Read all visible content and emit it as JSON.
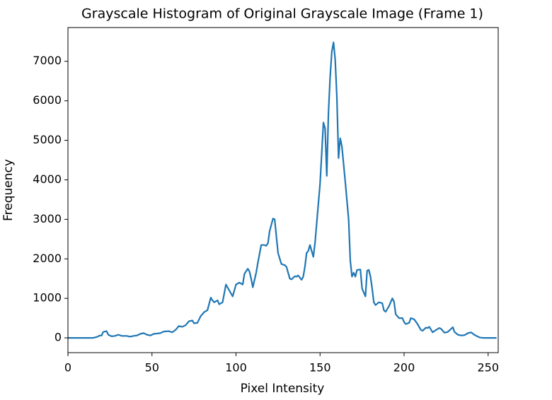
{
  "chart_data": {
    "type": "line",
    "title": "Grayscale Histogram of Original Grayscale Image (Frame 1)",
    "x_label": "Pixel Intensity",
    "y_label": "Frequency",
    "xlim": [
      0,
      256
    ],
    "ylim": [
      -374,
      7854
    ],
    "xticks": [
      0,
      50,
      100,
      150,
      200,
      250
    ],
    "yticks": [
      0,
      1000,
      2000,
      3000,
      4000,
      5000,
      6000,
      7000
    ],
    "grid": false,
    "x": [
      0,
      15,
      17,
      19,
      20,
      21,
      23,
      24,
      26,
      28,
      30,
      32,
      35,
      37,
      39,
      41,
      43,
      45,
      47,
      49,
      51,
      53,
      55,
      57,
      60,
      62,
      64,
      66,
      68,
      70,
      72,
      74,
      75,
      77,
      79,
      81,
      83,
      85,
      86,
      87,
      89,
      90,
      92,
      94,
      96,
      98,
      100,
      102,
      104,
      105,
      107,
      108,
      109,
      110,
      112,
      113,
      115,
      117,
      118,
      119,
      120,
      122,
      123,
      125,
      127,
      129,
      130,
      132,
      133,
      135,
      136,
      137,
      139,
      140,
      141,
      142,
      143,
      144,
      146,
      147,
      148,
      150,
      152,
      153,
      154,
      155,
      156,
      157,
      158,
      159,
      160,
      161,
      162,
      163,
      165,
      167,
      168,
      169,
      170,
      171,
      172,
      174,
      175,
      177,
      178,
      179,
      180,
      181,
      182,
      183,
      185,
      187,
      188,
      189,
      191,
      193,
      194,
      195,
      197,
      199,
      200,
      201,
      203,
      204,
      206,
      208,
      210,
      211,
      213,
      214,
      215,
      217,
      219,
      221,
      222,
      224,
      226,
      228,
      229,
      230,
      232,
      234,
      236,
      238,
      240,
      241,
      243,
      245,
      247,
      255
    ],
    "series": [
      {
        "name": "Frequency",
        "color": "#1f77b4",
        "values": [
          0,
          0,
          20,
          60,
          60,
          150,
          170,
          80,
          40,
          50,
          80,
          50,
          50,
          30,
          50,
          60,
          100,
          120,
          80,
          60,
          100,
          110,
          120,
          160,
          170,
          140,
          200,
          300,
          280,
          320,
          420,
          440,
          370,
          380,
          550,
          650,
          700,
          1020,
          950,
          900,
          950,
          850,
          900,
          1350,
          1200,
          1050,
          1350,
          1400,
          1350,
          1620,
          1750,
          1680,
          1500,
          1280,
          1650,
          1900,
          2350,
          2350,
          2330,
          2400,
          2700,
          3020,
          3000,
          2150,
          1870,
          1840,
          1800,
          1500,
          1480,
          1560,
          1550,
          1580,
          1470,
          1550,
          1800,
          2150,
          2200,
          2350,
          2050,
          2400,
          2900,
          3900,
          5450,
          5300,
          4100,
          5700,
          6600,
          7250,
          7480,
          7050,
          6100,
          4550,
          5050,
          4850,
          3950,
          3000,
          1950,
          1550,
          1650,
          1550,
          1720,
          1730,
          1250,
          1050,
          1700,
          1720,
          1550,
          1250,
          900,
          830,
          900,
          880,
          700,
          660,
          800,
          1000,
          920,
          600,
          500,
          500,
          400,
          350,
          380,
          500,
          470,
          350,
          200,
          180,
          260,
          250,
          280,
          140,
          200,
          250,
          230,
          130,
          150,
          230,
          270,
          150,
          80,
          60,
          70,
          120,
          140,
          100,
          50,
          10,
          0,
          0
        ]
      }
    ]
  }
}
